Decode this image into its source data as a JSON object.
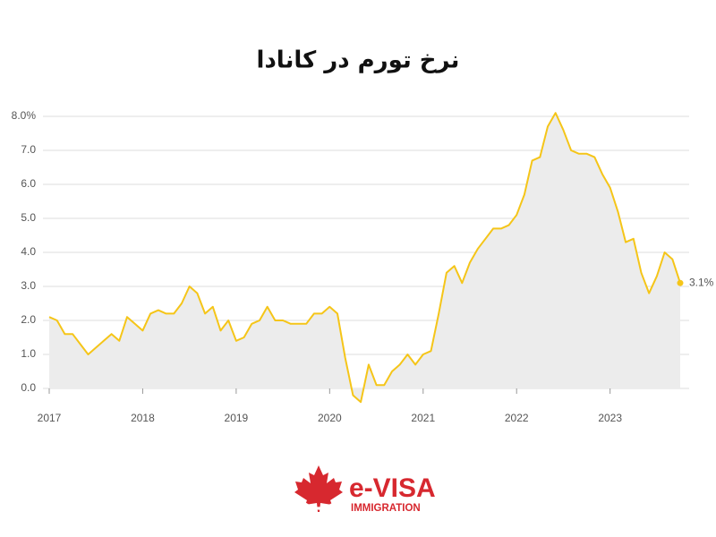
{
  "chart_data": {
    "type": "line",
    "title": "نرخ تورم در کانادا",
    "categories": [
      "2017",
      null,
      null,
      null,
      null,
      null,
      null,
      null,
      null,
      null,
      null,
      null,
      "2018",
      null,
      null,
      null,
      null,
      null,
      null,
      null,
      null,
      null,
      null,
      null,
      "2019",
      null,
      null,
      null,
      null,
      null,
      null,
      null,
      null,
      null,
      null,
      null,
      "2020",
      null,
      null,
      null,
      null,
      null,
      null,
      null,
      null,
      null,
      null,
      null,
      "2021",
      null,
      null,
      null,
      null,
      null,
      null,
      null,
      null,
      null,
      null,
      null,
      "2022",
      null,
      null,
      null,
      null,
      null,
      null,
      null,
      null,
      null,
      null,
      null,
      "2023",
      null,
      null,
      null,
      null,
      null,
      null,
      null,
      null,
      null
    ],
    "series": [
      {
        "color": "#f5c518",
        "area_color": "#ececec",
        "values": [
          2.1,
          2.0,
          1.6,
          1.6,
          1.3,
          1.0,
          1.2,
          1.4,
          1.6,
          1.4,
          2.1,
          1.9,
          1.7,
          2.2,
          2.3,
          2.2,
          2.2,
          2.5,
          3.0,
          2.8,
          2.2,
          2.4,
          1.7,
          2.0,
          1.4,
          1.5,
          1.9,
          2.0,
          2.4,
          2.0,
          2.0,
          1.9,
          1.9,
          1.9,
          2.2,
          2.2,
          2.4,
          2.2,
          0.9,
          -0.2,
          -0.4,
          0.7,
          0.1,
          0.1,
          0.5,
          0.7,
          1.0,
          0.7,
          1.0,
          1.1,
          2.2,
          3.4,
          3.6,
          3.1,
          3.7,
          4.1,
          4.4,
          4.7,
          4.7,
          4.8,
          5.1,
          5.7,
          6.7,
          6.8,
          7.7,
          8.1,
          7.6,
          7.0,
          6.9,
          6.9,
          6.8,
          6.3,
          5.9,
          5.2,
          4.3,
          4.4,
          3.4,
          2.8,
          3.3,
          4.0,
          3.8,
          3.1
        ],
        "value_labels": [
          null,
          null,
          null,
          null,
          null,
          null,
          null,
          null,
          null,
          null,
          null,
          null,
          null,
          null,
          null,
          null,
          null,
          null,
          null,
          null,
          null,
          null,
          null,
          null,
          null,
          null,
          null,
          null,
          null,
          null,
          null,
          null,
          null,
          null,
          null,
          null,
          null,
          null,
          null,
          null,
          null,
          null,
          null,
          null,
          null,
          null,
          null,
          null,
          null,
          null,
          null,
          null,
          null,
          null,
          null,
          null,
          null,
          null,
          null,
          null,
          null,
          null,
          null,
          null,
          null,
          null,
          null,
          null,
          null,
          null,
          null,
          null,
          null,
          null,
          null,
          null,
          null,
          null,
          null,
          null,
          null,
          "3.1%"
        ]
      }
    ],
    "ylim": [
      -0.5,
      8.2
    ],
    "yticks": [
      {
        "value": 8,
        "label": "8.0%"
      },
      {
        "value": 7,
        "label": "7.0"
      },
      {
        "value": 6,
        "label": "6.0"
      },
      {
        "value": 5,
        "label": "5.0"
      },
      {
        "value": 4,
        "label": "4.0"
      },
      {
        "value": 3,
        "label": "3.0"
      },
      {
        "value": 2,
        "label": "2.0"
      },
      {
        "value": 1,
        "label": "1.0"
      },
      {
        "value": 0,
        "label": "0.0"
      }
    ],
    "grid": true
  },
  "logo": {
    "text": "e-VISA",
    "subtext": "IMMIGRATION"
  }
}
